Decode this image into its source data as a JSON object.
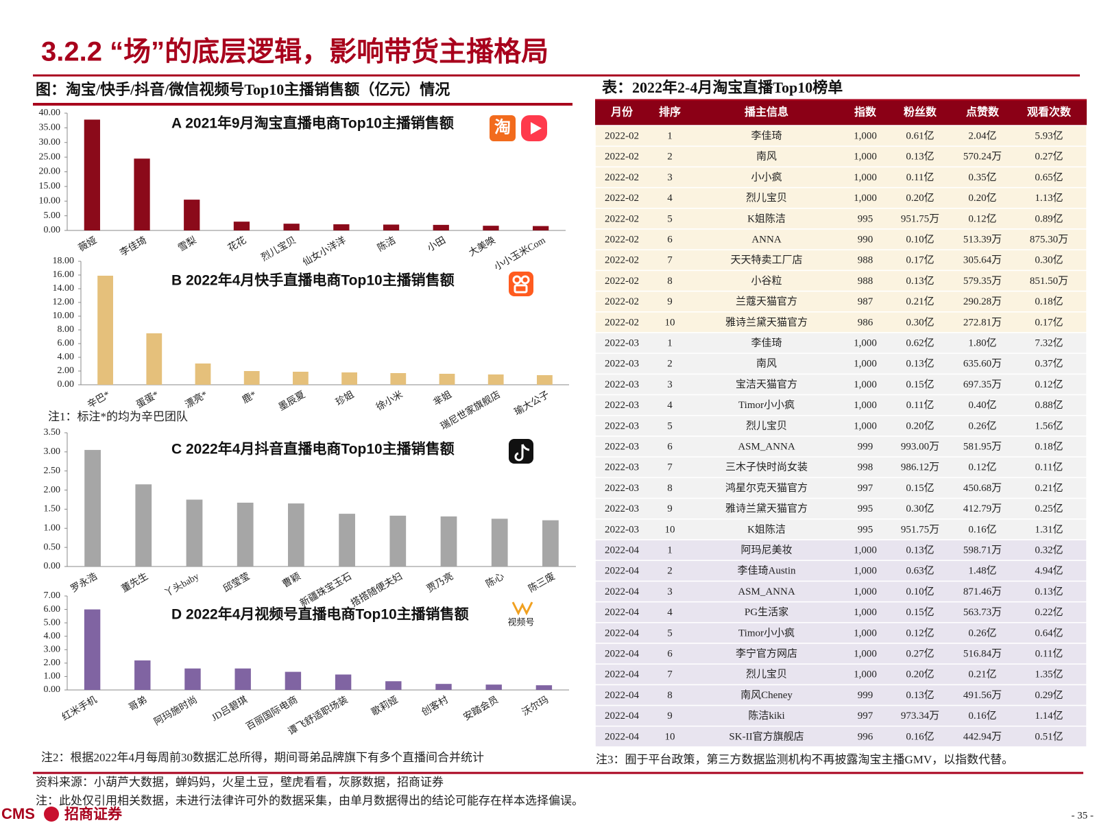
{
  "header": {
    "title": "3.2.2 “场”的底层逻辑，影响带货主播格局",
    "figure_caption": "图：淘宝/快手/抖音/微信视频号Top10主播销售额（亿元）情况",
    "table_caption": "表：2022年2-4月淘宝直播Top10榜单"
  },
  "chart_data": [
    {
      "type": "bar",
      "title": "A 2021年9月淘宝直播电商Top10主播销售额",
      "color": "#8b0a1a",
      "categories": [
        "薇娅",
        "李佳琦",
        "雪梨",
        "花花",
        "烈儿宝贝",
        "仙女小洋洋",
        "陈洁",
        "小田",
        "大美唤",
        "小小玉米Com"
      ],
      "values": [
        37.8,
        24.5,
        10.5,
        3.0,
        2.3,
        2.1,
        2.0,
        1.9,
        1.6,
        1.5
      ],
      "ylim": [
        0,
        40
      ],
      "yticks": [
        {
          "value": 0,
          "label": "0.00"
        },
        {
          "value": 5,
          "label": "5.00"
        },
        {
          "value": 10,
          "label": "10.00"
        },
        {
          "value": 15,
          "label": "15.00"
        },
        {
          "value": 20,
          "label": "20.00"
        },
        {
          "value": 25,
          "label": "25.00"
        },
        {
          "value": 30,
          "label": "30.00"
        },
        {
          "value": 35,
          "label": "35.00"
        },
        {
          "value": 40,
          "label": "40.00"
        }
      ]
    },
    {
      "type": "bar",
      "title": "B 2022年4月快手直播电商Top10主播销售额",
      "color": "#e5c07b",
      "categories": [
        "辛巴*",
        "蛋蛋*",
        "漂亮*",
        "鹿*",
        "墨辰夏",
        "珍姐",
        "徐小米",
        "芈姐",
        "瑞尼世家旗舰店",
        "瑜大公子"
      ],
      "values": [
        15.9,
        7.5,
        3.1,
        2.0,
        1.9,
        1.8,
        1.7,
        1.6,
        1.5,
        1.4
      ],
      "ylim": [
        0,
        18
      ],
      "yticks": [
        {
          "value": 0,
          "label": "0.00"
        },
        {
          "value": 2,
          "label": "2.00"
        },
        {
          "value": 4,
          "label": "4.00"
        },
        {
          "value": 6,
          "label": "6.00"
        },
        {
          "value": 8,
          "label": "8.00"
        },
        {
          "value": 10,
          "label": "10.00"
        },
        {
          "value": 12,
          "label": "12.00"
        },
        {
          "value": 14,
          "label": "14.00"
        },
        {
          "value": 16,
          "label": "16.00"
        },
        {
          "value": 18,
          "label": "18.00"
        }
      ]
    },
    {
      "type": "bar",
      "title": "C 2022年4月抖音直播电商Top10主播销售额",
      "color": "#a6a6a6",
      "categories": [
        "罗永浩",
        "董先生",
        "丫头baby",
        "邱莹莹",
        "曹颖",
        "新疆珠宝玉石",
        "搭搭随便夫妇",
        "贾乃亮",
        "陈心",
        "陈三废"
      ],
      "values": [
        3.05,
        2.15,
        1.75,
        1.67,
        1.65,
        1.38,
        1.33,
        1.31,
        1.25,
        1.21
      ],
      "ylim": [
        0,
        3.5
      ],
      "yticks": [
        {
          "value": 0,
          "label": "0.00"
        },
        {
          "value": 0.5,
          "label": "0.50"
        },
        {
          "value": 1,
          "label": "1.00"
        },
        {
          "value": 1.5,
          "label": "1.50"
        },
        {
          "value": 2,
          "label": "2.00"
        },
        {
          "value": 2.5,
          "label": "2.50"
        },
        {
          "value": 3,
          "label": "3.00"
        },
        {
          "value": 3.5,
          "label": "3.50"
        }
      ]
    },
    {
      "type": "bar",
      "title": "D 2022年4月视频号直播电商Top10主播销售额",
      "color": "#8064a2",
      "categories": [
        "红米手机",
        "哥弟",
        "阿玛施时尚",
        "JD吕碧琪",
        "百丽国际电商",
        "谭飞舒适职场装",
        "歌莉娅",
        "创客村",
        "安踏会员",
        "沃尔玛"
      ],
      "values": [
        6.0,
        2.2,
        1.6,
        1.6,
        1.35,
        1.15,
        0.65,
        0.45,
        0.4,
        0.35
      ],
      "ylim": [
        0,
        7
      ],
      "yticks": [
        {
          "value": 0,
          "label": "0.00"
        },
        {
          "value": 1,
          "label": "1.00"
        },
        {
          "value": 2,
          "label": "2.00"
        },
        {
          "value": 3,
          "label": "3.00"
        },
        {
          "value": 4,
          "label": "4.00"
        },
        {
          "value": 5,
          "label": "5.00"
        },
        {
          "value": 6,
          "label": "6.00"
        },
        {
          "value": 7,
          "label": "7.00"
        }
      ]
    }
  ],
  "icons": {
    "taobao": "淘",
    "channels": "视频号"
  },
  "table": {
    "columns": [
      "月份",
      "排序",
      "播主信息",
      "指数",
      "粉丝数",
      "点赞数",
      "观看次数"
    ],
    "rows": [
      [
        "2022-02",
        "1",
        "李佳琦",
        "1,000",
        "0.61亿",
        "2.04亿",
        "5.93亿"
      ],
      [
        "2022-02",
        "2",
        "南风",
        "1,000",
        "0.13亿",
        "570.24万",
        "0.27亿"
      ],
      [
        "2022-02",
        "3",
        "小小疯",
        "1,000",
        "0.11亿",
        "0.35亿",
        "0.65亿"
      ],
      [
        "2022-02",
        "4",
        "烈儿宝贝",
        "1,000",
        "0.20亿",
        "0.20亿",
        "1.13亿"
      ],
      [
        "2022-02",
        "5",
        "K姐陈洁",
        "995",
        "951.75万",
        "0.12亿",
        "0.89亿"
      ],
      [
        "2022-02",
        "6",
        "ANNA",
        "990",
        "0.10亿",
        "513.39万",
        "875.30万"
      ],
      [
        "2022-02",
        "7",
        "天天特卖工厂店",
        "988",
        "0.17亿",
        "305.64万",
        "0.30亿"
      ],
      [
        "2022-02",
        "8",
        "小谷粒",
        "988",
        "0.13亿",
        "579.35万",
        "851.50万"
      ],
      [
        "2022-02",
        "9",
        "兰蔻天猫官方",
        "987",
        "0.21亿",
        "290.28万",
        "0.18亿"
      ],
      [
        "2022-02",
        "10",
        "雅诗兰黛天猫官方",
        "986",
        "0.30亿",
        "272.81万",
        "0.17亿"
      ],
      [
        "2022-03",
        "1",
        "李佳琦",
        "1,000",
        "0.62亿",
        "1.80亿",
        "7.32亿"
      ],
      [
        "2022-03",
        "2",
        "南风",
        "1,000",
        "0.13亿",
        "635.60万",
        "0.37亿"
      ],
      [
        "2022-03",
        "3",
        "宝洁天猫官方",
        "1,000",
        "0.15亿",
        "697.35万",
        "0.12亿"
      ],
      [
        "2022-03",
        "4",
        "Timor小小疯",
        "1,000",
        "0.11亿",
        "0.40亿",
        "0.88亿"
      ],
      [
        "2022-03",
        "5",
        "烈儿宝贝",
        "1,000",
        "0.20亿",
        "0.26亿",
        "1.56亿"
      ],
      [
        "2022-03",
        "6",
        "ASM_ANNA",
        "999",
        "993.00万",
        "581.95万",
        "0.18亿"
      ],
      [
        "2022-03",
        "7",
        "三木子快时尚女装",
        "998",
        "986.12万",
        "0.12亿",
        "0.11亿"
      ],
      [
        "2022-03",
        "8",
        "鸿星尔克天猫官方",
        "997",
        "0.15亿",
        "450.68万",
        "0.21亿"
      ],
      [
        "2022-03",
        "9",
        "雅诗兰黛天猫官方",
        "995",
        "0.30亿",
        "412.79万",
        "0.25亿"
      ],
      [
        "2022-03",
        "10",
        "K姐陈洁",
        "995",
        "951.75万",
        "0.16亿",
        "1.31亿"
      ],
      [
        "2022-04",
        "1",
        "阿玛尼美妆",
        "1,000",
        "0.13亿",
        "598.71万",
        "0.32亿"
      ],
      [
        "2022-04",
        "2",
        "李佳琦Austin",
        "1,000",
        "0.63亿",
        "1.48亿",
        "4.94亿"
      ],
      [
        "2022-04",
        "3",
        "ASM_ANNA",
        "1,000",
        "0.10亿",
        "871.46万",
        "0.13亿"
      ],
      [
        "2022-04",
        "4",
        "PG生活家",
        "1,000",
        "0.15亿",
        "563.73万",
        "0.22亿"
      ],
      [
        "2022-04",
        "5",
        "Timor小小疯",
        "1,000",
        "0.12亿",
        "0.26亿",
        "0.64亿"
      ],
      [
        "2022-04",
        "6",
        "李宁官方网店",
        "1,000",
        "0.27亿",
        "516.84万",
        "0.11亿"
      ],
      [
        "2022-04",
        "7",
        "烈儿宝贝",
        "1,000",
        "0.20亿",
        "0.21亿",
        "1.35亿"
      ],
      [
        "2022-04",
        "8",
        "南风Cheney",
        "999",
        "0.13亿",
        "491.56万",
        "0.29亿"
      ],
      [
        "2022-04",
        "9",
        "陈洁kiki",
        "997",
        "973.34万",
        "0.16亿",
        "1.14亿"
      ],
      [
        "2022-04",
        "10",
        "SK-II官方旗舰店",
        "996",
        "0.16亿",
        "442.94万",
        "0.51亿"
      ]
    ]
  },
  "notes": {
    "note1": "注1：标注*的均为辛巴团队",
    "note2": "注2：根据2022年4月每周前30数据汇总所得，期间哥弟品牌旗下有多个直播间合并统计",
    "note3": "注3：囿于平台政策，第三方数据监测机构不再披露淘宝主播GMV，以指数代替。",
    "source": "资料来源：小葫芦大数据，蝉妈妈，火星土豆，壁虎看看，灰豚数据，招商证券",
    "disclaimer": "注：此处仅引用相关数据，未进行法律许可外的数据采集，由单月数据得出的结论可能存在样本选择偏误。"
  },
  "footer": {
    "logo": "CMS",
    "company": "招商证券",
    "page": "- 35 -"
  }
}
